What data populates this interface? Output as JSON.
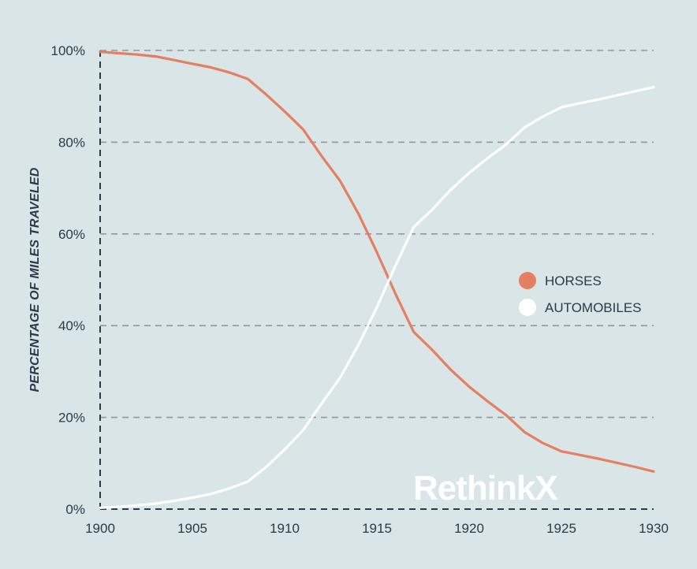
{
  "chart_data": {
    "type": "line",
    "ylabel": "PERCENTAGE OF MILES TRAVELED",
    "xlabel": "",
    "xlim": [
      1900,
      1930
    ],
    "ylim": [
      0,
      100
    ],
    "x_ticks": [
      1900,
      1905,
      1910,
      1915,
      1920,
      1925,
      1930
    ],
    "y_ticks": [
      {
        "value": 0,
        "label": "0%"
      },
      {
        "value": 20,
        "label": "20%"
      },
      {
        "value": 40,
        "label": "40%"
      },
      {
        "value": 60,
        "label": "60%"
      },
      {
        "value": 80,
        "label": "80%"
      },
      {
        "value": 100,
        "label": "100%"
      }
    ],
    "grid": true,
    "legend_position": "right",
    "series": [
      {
        "name": "HORSES",
        "color": "#e47f61",
        "points": [
          [
            1900,
            99.7
          ],
          [
            1901,
            99.4
          ],
          [
            1902,
            99.1
          ],
          [
            1903,
            98.7
          ],
          [
            1904,
            97.9
          ],
          [
            1905,
            97.1
          ],
          [
            1906,
            96.3
          ],
          [
            1907,
            95.2
          ],
          [
            1908,
            93.8
          ],
          [
            1909,
            90.4
          ],
          [
            1910,
            86.7
          ],
          [
            1911,
            82.8
          ],
          [
            1912,
            77.0
          ],
          [
            1913,
            71.6
          ],
          [
            1914,
            64.4
          ],
          [
            1915,
            56.0
          ],
          [
            1916,
            47.0
          ],
          [
            1917,
            38.6
          ],
          [
            1918,
            34.7
          ],
          [
            1919,
            30.4
          ],
          [
            1920,
            26.7
          ],
          [
            1921,
            23.5
          ],
          [
            1922,
            20.5
          ],
          [
            1923,
            16.8
          ],
          [
            1924,
            14.4
          ],
          [
            1925,
            12.6
          ],
          [
            1926,
            11.8
          ],
          [
            1927,
            11.0
          ],
          [
            1928,
            10.1
          ],
          [
            1929,
            9.2
          ],
          [
            1930,
            8.2
          ]
        ]
      },
      {
        "name": "AUTOMOBILES",
        "color": "#ffffff",
        "points": [
          [
            1900,
            0.3
          ],
          [
            1901,
            0.5
          ],
          [
            1902,
            0.8
          ],
          [
            1903,
            1.2
          ],
          [
            1904,
            1.8
          ],
          [
            1905,
            2.5
          ],
          [
            1906,
            3.3
          ],
          [
            1907,
            4.5
          ],
          [
            1908,
            6.0
          ],
          [
            1909,
            9.2
          ],
          [
            1910,
            13.0
          ],
          [
            1911,
            17.2
          ],
          [
            1912,
            23.0
          ],
          [
            1913,
            28.6
          ],
          [
            1914,
            35.8
          ],
          [
            1915,
            44.0
          ],
          [
            1916,
            53.0
          ],
          [
            1917,
            61.5
          ],
          [
            1918,
            65.3
          ],
          [
            1919,
            69.6
          ],
          [
            1920,
            73.3
          ],
          [
            1921,
            76.5
          ],
          [
            1922,
            79.5
          ],
          [
            1923,
            83.2
          ],
          [
            1924,
            85.6
          ],
          [
            1925,
            87.6
          ],
          [
            1926,
            88.5
          ],
          [
            1927,
            89.3
          ],
          [
            1928,
            90.2
          ],
          [
            1929,
            91.1
          ],
          [
            1930,
            92.0
          ]
        ]
      }
    ]
  },
  "brand": {
    "logo_text": "RethinkX"
  }
}
